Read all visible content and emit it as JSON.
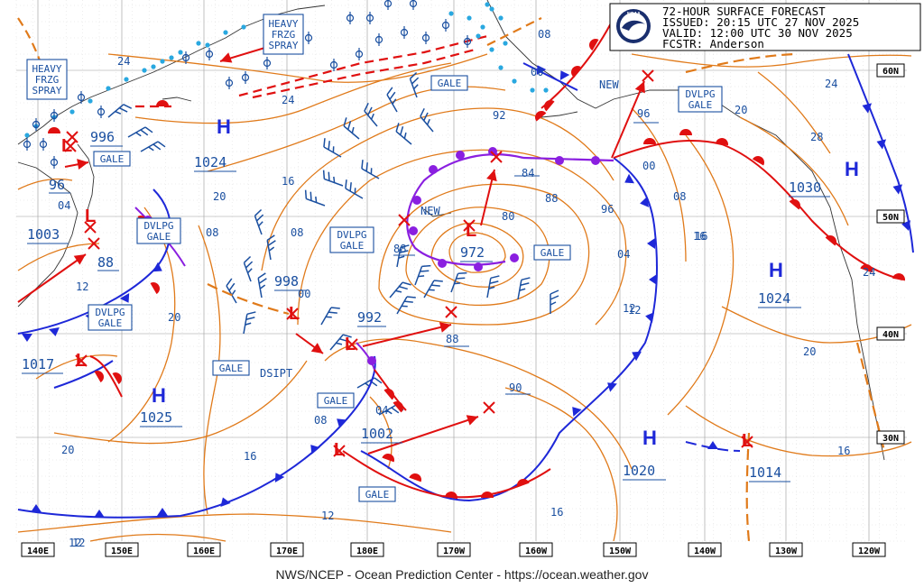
{
  "header": {
    "title": "72-HOUR SURFACE FORECAST",
    "issued": "ISSUED: 20:15 UTC 27 NOV 2025",
    "valid": "VALID:  12:00 UTC 30 NOV 2025",
    "forecaster": "FCSTR:  Anderson"
  },
  "footer": {
    "credit": "NWS/NCEP - Ocean Prediction Center - https://ocean.weather.gov"
  },
  "lon_labels": [
    "140E",
    "150E",
    "160E",
    "170E",
    "180E",
    "170W",
    "160W",
    "150W",
    "140W",
    "130W",
    "120W"
  ],
  "lat_labels": [
    "60N",
    "50N",
    "40N",
    "30N"
  ],
  "highs": [
    {
      "letter": "H",
      "pressure": "1024"
    },
    {
      "letter": "H",
      "pressure": "1025"
    },
    {
      "letter": "H",
      "pressure": "1020"
    },
    {
      "letter": "H",
      "pressure": "1024"
    },
    {
      "letter": "H",
      "pressure": "1030"
    }
  ],
  "lows": [
    {
      "pressure": "96"
    },
    {
      "pressure": "1003"
    },
    {
      "pressure": "996"
    },
    {
      "pressure": "88"
    },
    {
      "pressure": "1017"
    },
    {
      "pressure": "998"
    },
    {
      "pressure": "992"
    },
    {
      "pressure": "972"
    },
    {
      "pressure": "1002"
    },
    {
      "pressure": "1014"
    }
  ],
  "warning_boxes": [
    {
      "line1": "HEAVY",
      "line2": "FRZG",
      "line3": "SPRAY"
    },
    {
      "line1": "HEAVY",
      "line2": "FRZG",
      "line3": "SPRAY"
    },
    {
      "line1": "GALE",
      "line2": ""
    },
    {
      "line1": "DVLPG",
      "line2": "GALE"
    },
    {
      "line1": "DVLPG",
      "line2": "GALE"
    },
    {
      "line1": "GALE",
      "line2": ""
    },
    {
      "line1": "DVLPG",
      "line2": "GALE"
    },
    {
      "line1": "GALE",
      "line2": ""
    },
    {
      "line1": "GALE",
      "line2": ""
    },
    {
      "line1": "GALE",
      "line2": ""
    },
    {
      "line1": "GALE",
      "line2": ""
    },
    {
      "line1": "DVLPG",
      "line2": "GALE"
    }
  ],
  "annotations": {
    "new1": "NEW",
    "new2": "NEW",
    "dsipt": "DSIPT"
  },
  "isobar_labels": [
    "24",
    "24",
    "20",
    "16",
    "08",
    "00",
    "92",
    "84",
    "80",
    "88",
    "96",
    "00",
    "08",
    "16",
    "04",
    "12",
    "20",
    "08",
    "04",
    "12",
    "16",
    "20",
    "90",
    "88",
    "12",
    "16",
    "20",
    "08",
    "04",
    "12",
    "16",
    "00",
    "96",
    "08",
    "24",
    "28",
    "24",
    "20",
    "16",
    "12",
    "88",
    "12"
  ],
  "colors": {
    "isobar": "#e07a1a",
    "cold_front": "#1e28d8",
    "warm_front": "#e01010",
    "occluded": "#8a1fe0",
    "text": "#1a4fa0",
    "wind": "#1a4fa0",
    "arrow": "#e01010",
    "freezing": "#29a8e0",
    "ice_edge": "#e01010",
    "land": "#3a3a3a"
  }
}
